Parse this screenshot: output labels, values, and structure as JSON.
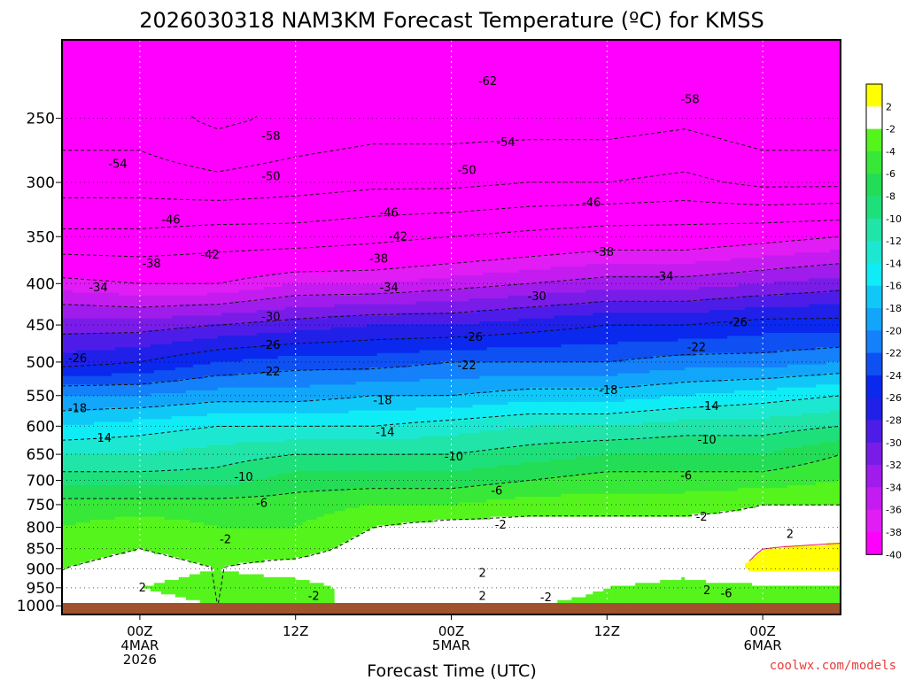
{
  "title": "2026030318 NAM3KM Forecast Temperature (ºC) for KMSS",
  "x_axis": {
    "label": "Forecast Time (UTC)",
    "ticks": [
      {
        "hour": 6,
        "lines": [
          "00Z",
          "4MAR",
          "2026"
        ]
      },
      {
        "hour": 18,
        "lines": [
          "12Z"
        ]
      },
      {
        "hour": 30,
        "lines": [
          "00Z",
          "5MAR"
        ]
      },
      {
        "hour": 42,
        "lines": [
          "12Z"
        ]
      },
      {
        "hour": 54,
        "lines": [
          "00Z",
          "6MAR"
        ]
      }
    ]
  },
  "y_axis": {
    "ticks": [
      "250",
      "300",
      "350",
      "400",
      "450",
      "500",
      "550",
      "600",
      "650",
      "700",
      "750",
      "800",
      "850",
      "900",
      "950",
      "1000"
    ]
  },
  "credit": "coolwx.com/models",
  "colorbar": {
    "levels": [
      {
        "label": "2",
        "color": "#ffff00"
      },
      {
        "label": "-2",
        "color": "#ffffff"
      },
      {
        "label": "-4",
        "color": "#55f41c"
      },
      {
        "label": "-6",
        "color": "#38e838"
      },
      {
        "label": "-8",
        "color": "#22dd55"
      },
      {
        "label": "-10",
        "color": "#1ee07a"
      },
      {
        "label": "-12",
        "color": "#20e4a8"
      },
      {
        "label": "-14",
        "color": "#1ce8d2"
      },
      {
        "label": "-16",
        "color": "#10ecf6"
      },
      {
        "label": "-18",
        "color": "#10c8f8"
      },
      {
        "label": "-20",
        "color": "#12a6fa"
      },
      {
        "label": "-22",
        "color": "#1480fa"
      },
      {
        "label": "-24",
        "color": "#0e50f2"
      },
      {
        "label": "-26",
        "color": "#0a28ee"
      },
      {
        "label": "-28",
        "color": "#2020e8"
      },
      {
        "label": "-30",
        "color": "#4e1ce8"
      },
      {
        "label": "-32",
        "color": "#7a1ce8"
      },
      {
        "label": "-34",
        "color": "#a01cec"
      },
      {
        "label": "-36",
        "color": "#c41cf0"
      },
      {
        "label": "-38",
        "color": "#e21cf4"
      },
      {
        "label": "-40",
        "color": "#ff00ff"
      }
    ],
    "top_color": "#ffff00"
  },
  "ground_color": "#a0522d",
  "chart_data": {
    "type": "heatmap",
    "title": "2026030318 NAM3KM Forecast Temperature (ºC) for KMSS",
    "xlabel": "Forecast Time (UTC)",
    "ylabel": "",
    "x_units": "forecast hour from 2026-03-03 18Z",
    "xlim": [
      0,
      60
    ],
    "y_units": "hPa",
    "ylim": [
      1025,
      200
    ],
    "contour_interval": 4,
    "x": [
      0,
      6,
      12,
      18,
      24,
      30,
      36,
      42,
      48,
      54,
      60
    ],
    "levels": [
      250,
      300,
      350,
      400,
      450,
      500,
      550,
      600,
      650,
      700,
      750,
      800,
      850,
      900,
      950,
      1000
    ],
    "values": [
      [
        -56,
        -56,
        -59,
        -57,
        -56,
        -56,
        -56,
        -56,
        -55,
        -57,
        -57
      ],
      [
        -52,
        -52,
        -53,
        -52,
        -51,
        -51,
        -50,
        -50,
        -49,
        -51,
        -51
      ],
      [
        -45,
        -45,
        -44,
        -44,
        -43,
        -42,
        -41,
        -40,
        -40,
        -39,
        -38
      ],
      [
        -37,
        -38,
        -38,
        -36,
        -36,
        -35,
        -34,
        -33,
        -33,
        -32,
        -31
      ],
      [
        -31,
        -31,
        -30,
        -29,
        -28,
        -28,
        -27,
        -26,
        -26,
        -25,
        -25
      ],
      [
        -27,
        -26,
        -24,
        -23,
        -23,
        -22,
        -22,
        -22,
        -21,
        -21,
        -20
      ],
      [
        -20,
        -20,
        -19,
        -19,
        -18,
        -18,
        -17,
        -17,
        -16,
        -15,
        -14
      ],
      [
        -16,
        -15,
        -14,
        -14,
        -14,
        -13,
        -12,
        -12,
        -11,
        -11,
        -10
      ],
      [
        -12,
        -12,
        -11,
        -10,
        -10,
        -10,
        -9,
        -8,
        -8,
        -8,
        -6
      ],
      [
        -9,
        -9,
        -9,
        -7,
        -7,
        -7,
        -6,
        -5,
        -5,
        -5,
        -4
      ],
      [
        -5,
        -5,
        -5,
        -5,
        -4,
        -4,
        -3,
        -3,
        -3,
        -2,
        -2
      ],
      [
        -4,
        -3,
        -4,
        -4,
        -2,
        -1,
        -1,
        -1,
        -1,
        -1,
        -1
      ],
      [
        -3,
        -2,
        -3,
        -3,
        -1,
        0,
        1,
        -1,
        -1,
        2,
        3
      ],
      [
        -2,
        -1,
        -2,
        -1,
        0,
        1,
        2,
        0,
        -1,
        3,
        3
      ],
      [
        -2,
        -2,
        -3,
        -3,
        -1,
        1,
        0,
        -2,
        -3,
        -3,
        -3
      ],
      [
        -1,
        -1,
        -2,
        -2,
        -2,
        0,
        -2,
        -3,
        -4,
        -3,
        -3
      ]
    ],
    "contour_labels": [
      {
        "text": "-62",
        "x": 32.8,
        "p": 225
      },
      {
        "text": "-58",
        "x": 16.1,
        "p": 263
      },
      {
        "text": "-58",
        "x": 48.4,
        "p": 237
      },
      {
        "text": "-54",
        "x": 4.3,
        "p": 285
      },
      {
        "text": "-54",
        "x": 34.2,
        "p": 268
      },
      {
        "text": "-50",
        "x": 16.1,
        "p": 295
      },
      {
        "text": "-50",
        "x": 31.2,
        "p": 290
      },
      {
        "text": "-46",
        "x": 8.4,
        "p": 334
      },
      {
        "text": "-46",
        "x": 25.2,
        "p": 327
      },
      {
        "text": "-46",
        "x": 40.8,
        "p": 318
      },
      {
        "text": "-42",
        "x": 11.4,
        "p": 369
      },
      {
        "text": "-42",
        "x": 25.9,
        "p": 350
      },
      {
        "text": "-38",
        "x": 6.9,
        "p": 378
      },
      {
        "text": "-38",
        "x": 24.4,
        "p": 373
      },
      {
        "text": "-38",
        "x": 41.8,
        "p": 366
      },
      {
        "text": "-34",
        "x": 2.8,
        "p": 405
      },
      {
        "text": "-34",
        "x": 25.2,
        "p": 405
      },
      {
        "text": "-34",
        "x": 46.4,
        "p": 392
      },
      {
        "text": "-30",
        "x": 16.1,
        "p": 440
      },
      {
        "text": "-30",
        "x": 36.6,
        "p": 415
      },
      {
        "text": "-26",
        "x": 1.2,
        "p": 495
      },
      {
        "text": "-26",
        "x": 16.1,
        "p": 477
      },
      {
        "text": "-26",
        "x": 31.7,
        "p": 466
      },
      {
        "text": "-26",
        "x": 52.1,
        "p": 447
      },
      {
        "text": "-22",
        "x": 16.1,
        "p": 514
      },
      {
        "text": "-22",
        "x": 31.2,
        "p": 505
      },
      {
        "text": "-22",
        "x": 48.9,
        "p": 480
      },
      {
        "text": "-18",
        "x": 1.2,
        "p": 571
      },
      {
        "text": "-18",
        "x": 24.7,
        "p": 558
      },
      {
        "text": "-18",
        "x": 42.1,
        "p": 542
      },
      {
        "text": "-14",
        "x": 3.1,
        "p": 621
      },
      {
        "text": "-14",
        "x": 24.9,
        "p": 611
      },
      {
        "text": "-14",
        "x": 49.9,
        "p": 567
      },
      {
        "text": "-10",
        "x": 14.0,
        "p": 694
      },
      {
        "text": "-10",
        "x": 30.2,
        "p": 655
      },
      {
        "text": "-10",
        "x": 49.7,
        "p": 624
      },
      {
        "text": "-6",
        "x": 15.4,
        "p": 747
      },
      {
        "text": "-6",
        "x": 33.5,
        "p": 721
      },
      {
        "text": "-6",
        "x": 48.1,
        "p": 691
      },
      {
        "text": "-6",
        "x": 51.2,
        "p": 966
      },
      {
        "text": "-2",
        "x": 12.6,
        "p": 829
      },
      {
        "text": "-2",
        "x": 33.8,
        "p": 795
      },
      {
        "text": "-2",
        "x": 49.3,
        "p": 777
      },
      {
        "text": "-2",
        "x": 19.4,
        "p": 973
      },
      {
        "text": "-2",
        "x": 37.3,
        "p": 977
      },
      {
        "text": "2",
        "x": 6.2,
        "p": 950
      },
      {
        "text": "2",
        "x": 32.4,
        "p": 912
      },
      {
        "text": "2",
        "x": 56.1,
        "p": 816
      },
      {
        "text": "2",
        "x": 32.4,
        "p": 973
      },
      {
        "text": "2",
        "x": 49.7,
        "p": 958
      }
    ],
    "grid": true
  }
}
